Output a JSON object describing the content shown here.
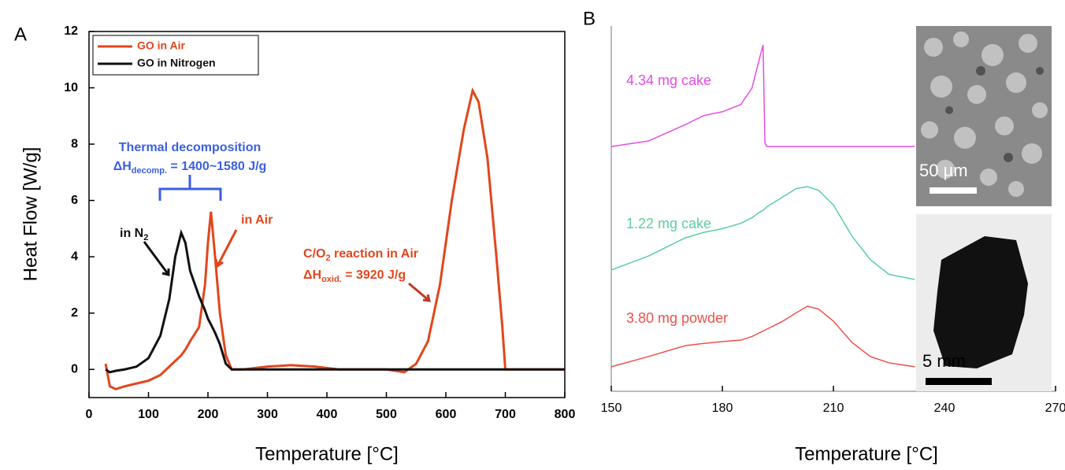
{
  "chart_data": [
    {
      "type": "line",
      "panel": "A",
      "ylabel": "Heat Flow [W/g]",
      "xlabel": "Temperature [°C]",
      "xlim": [
        0,
        800
      ],
      "xticks": [
        0,
        100,
        200,
        300,
        400,
        500,
        600,
        700,
        800
      ],
      "ylim": [
        -1,
        12
      ],
      "yticks": [
        0,
        2,
        4,
        6,
        8,
        10,
        12
      ],
      "legend": "top-left",
      "x": [
        28,
        35,
        45,
        60,
        80,
        100,
        120,
        135,
        145,
        155,
        162,
        170,
        185,
        195,
        200,
        205,
        212,
        220,
        230,
        240,
        260,
        300,
        340,
        380,
        420,
        500,
        530,
        550,
        570,
        590,
        610,
        630,
        645,
        655,
        670,
        685,
        695,
        700,
        750,
        800
      ],
      "series": [
        {
          "name": "GO in Air",
          "color": "#e2461c",
          "values": [
            0.2,
            -0.6,
            -0.7,
            -0.6,
            -0.5,
            -0.4,
            -0.2,
            0.1,
            0.3,
            0.5,
            0.7,
            1.0,
            1.5,
            3.0,
            4.5,
            5.6,
            4.0,
            2.0,
            0.5,
            0,
            0,
            0.1,
            0.15,
            0.1,
            0,
            0,
            -0.1,
            0.2,
            1.0,
            3.0,
            6.0,
            8.5,
            9.9,
            9.5,
            7.5,
            4.0,
            1.5,
            0,
            0,
            0
          ]
        },
        {
          "name": "GO in Nitrogen",
          "color": "#111111",
          "values": [
            0,
            -0.1,
            -0.05,
            0,
            0.1,
            0.4,
            1.2,
            2.5,
            4.0,
            4.85,
            4.5,
            3.5,
            2.6,
            2.1,
            1.8,
            1.6,
            1.3,
            0.9,
            0.2,
            0,
            0,
            0,
            0,
            0,
            0,
            0,
            0,
            0,
            0,
            0,
            0,
            0,
            0,
            0,
            0,
            0,
            0,
            0,
            0,
            0
          ]
        }
      ],
      "annotations": [
        {
          "parts": [
            "Thermal decomposition"
          ],
          "color": "#3a5fe0"
        },
        {
          "parts": [
            "ΔH",
            "decomp.",
            " = 1400~1580 J/g"
          ],
          "color": "#3a5fe0"
        },
        {
          "parts": [
            "in N",
            "2"
          ],
          "color": "#111111"
        },
        {
          "parts": [
            "in Air"
          ],
          "color": "#e2461c"
        },
        {
          "parts": [
            "C/O",
            "2",
            " reaction in Air"
          ],
          "color": "#e2461c"
        },
        {
          "parts": [
            "ΔH",
            "oxid.",
            " = 3920 J/g"
          ],
          "color": "#e2461c"
        }
      ]
    },
    {
      "type": "line",
      "panel": "B",
      "xlabel": "Temperature [°C]",
      "xlim": [
        150,
        270
      ],
      "xticks": [
        150,
        180,
        210,
        240,
        270
      ],
      "ylim": [
        0,
        10
      ],
      "x": [
        150,
        160,
        170,
        175,
        180,
        185,
        188,
        190,
        191,
        191.5,
        192,
        196,
        200,
        203,
        206,
        210,
        215,
        220,
        225,
        232
      ],
      "series": [
        {
          "name": "4.34 mg cake",
          "color": "#e64ce6",
          "values": [
            6.7,
            6.85,
            7.3,
            7.55,
            7.65,
            7.85,
            8.3,
            9.1,
            9.48,
            6.8,
            6.7,
            6.7,
            6.7,
            6.7,
            6.7,
            6.7,
            6.7,
            6.7,
            6.7,
            6.7
          ]
        },
        {
          "name": "1.22 mg cake",
          "color": "#5ccf9c",
          "values": [
            3.32,
            3.7,
            4.2,
            4.35,
            4.45,
            4.6,
            4.75,
            4.9,
            4.95,
            5.0,
            5.05,
            5.3,
            5.55,
            5.6,
            5.5,
            5.1,
            4.25,
            3.6,
            3.2,
            3.06
          ]
        },
        {
          "name": "3.80 mg powder",
          "color": "#f0504a",
          "values": [
            0.67,
            0.95,
            1.25,
            1.31,
            1.36,
            1.4,
            1.5,
            1.6,
            1.65,
            1.67,
            1.7,
            1.9,
            2.15,
            2.33,
            2.25,
            1.92,
            1.34,
            0.95,
            0.78,
            0.67
          ]
        }
      ],
      "insets": [
        {
          "label": "50 µm"
        },
        {
          "label": "5 mm"
        }
      ]
    }
  ]
}
